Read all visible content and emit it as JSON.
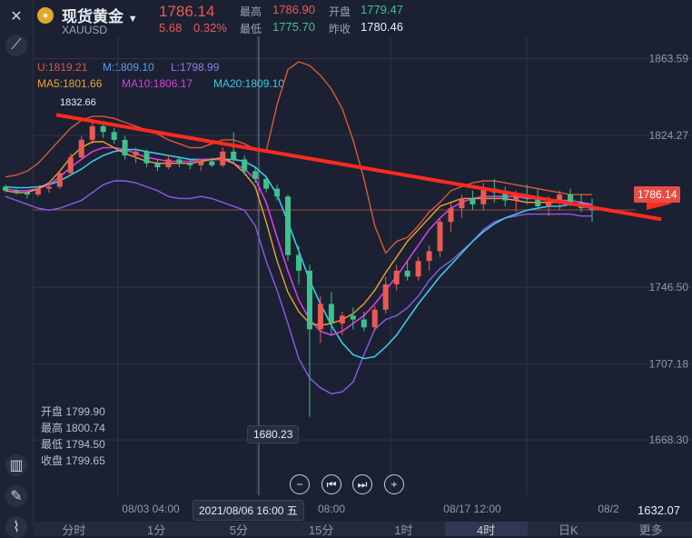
{
  "header": {
    "name": "现货黄金",
    "code": "XAUUSD",
    "price": "1786.14",
    "change": "5.68",
    "change_pct": "0.32%",
    "high_label": "最高",
    "high": "1786.90",
    "open_label": "开盘",
    "open": "1779.47",
    "low_label": "最低",
    "low": "1775.70",
    "prev_label": "昨收",
    "prev": "1780.46"
  },
  "indicators": {
    "boll": {
      "u": "U:1819.21",
      "m": "M:1809.10",
      "l": "L:1798.99"
    },
    "ma": {
      "ma5": "MA5:1801.66",
      "ma10": "MA10:1806.17",
      "ma20": "MA20:1809.10"
    }
  },
  "ohlc_panel": [
    {
      "label": "开盘",
      "value": "1799.90"
    },
    {
      "label": "最高",
      "value": "1800.74"
    },
    {
      "label": "最低",
      "value": "1794.50"
    },
    {
      "label": "收盘",
      "value": "1799.65"
    }
  ],
  "annotations": {
    "max_label": "1832.66",
    "min_label": "1680.23",
    "current_tag": "1786.14",
    "bottom_right": "1632.07",
    "crosshair_time": "2021/08/06 16:00 五"
  },
  "tabs": [
    "分时",
    "1分",
    "5分",
    "15分",
    "1时",
    "4时",
    "日K",
    "更多"
  ],
  "active_tab": "4时",
  "colors": {
    "up": "#e95a55",
    "down": "#3fc08d",
    "ma5": "#f0a030",
    "ma10": "#d83fe0",
    "ma20": "#3cc8e8",
    "boll_u": "#d9583d",
    "boll_l": "#8c5be8",
    "trendline": "#ff2a1f"
  },
  "chart_data": {
    "type": "candlestick",
    "y_ticks": [
      "1863.59",
      "1824.27",
      "1786.14",
      "1746.50",
      "1707.18",
      "1668.30"
    ],
    "x_ticks": [
      "08/03 04:00",
      "08/17 12:00",
      "08/2"
    ],
    "ylim": [
      1640,
      1875
    ],
    "candles": [
      [
        1798,
        1799,
        1795,
        1796
      ],
      [
        1796,
        1797,
        1794,
        1795
      ],
      [
        1795,
        1796,
        1792,
        1794
      ],
      [
        1794,
        1798,
        1793,
        1797
      ],
      [
        1797,
        1800,
        1795,
        1798
      ],
      [
        1798,
        1806,
        1797,
        1805
      ],
      [
        1805,
        1815,
        1804,
        1813
      ],
      [
        1813,
        1824,
        1812,
        1822
      ],
      [
        1822,
        1832.66,
        1820,
        1829
      ],
      [
        1829,
        1831,
        1823,
        1826
      ],
      [
        1826,
        1828,
        1820,
        1822
      ],
      [
        1822,
        1824,
        1812,
        1814
      ],
      [
        1814,
        1818,
        1810,
        1816
      ],
      [
        1816,
        1817,
        1808,
        1810
      ],
      [
        1810,
        1812,
        1806,
        1808
      ],
      [
        1808,
        1814,
        1807,
        1812
      ],
      [
        1812,
        1813,
        1808,
        1810
      ],
      [
        1810,
        1811,
        1807,
        1809
      ],
      [
        1809,
        1812,
        1806,
        1811
      ],
      [
        1811,
        1813,
        1808,
        1809
      ],
      [
        1809,
        1818,
        1808,
        1816
      ],
      [
        1816,
        1826,
        1810,
        1812
      ],
      [
        1812,
        1814,
        1804,
        1806
      ],
      [
        1806,
        1808,
        1800,
        1802
      ],
      [
        1802,
        1803,
        1795,
        1797
      ],
      [
        1797,
        1799,
        1791,
        1793
      ],
      [
        1793,
        1794,
        1760,
        1763
      ],
      [
        1763,
        1768,
        1748,
        1755
      ],
      [
        1755,
        1758,
        1680.23,
        1725
      ],
      [
        1725,
        1742,
        1718,
        1738
      ],
      [
        1738,
        1744,
        1722,
        1728
      ],
      [
        1728,
        1734,
        1722,
        1732
      ],
      [
        1732,
        1736,
        1725,
        1730
      ],
      [
        1730,
        1734,
        1724,
        1726
      ],
      [
        1726,
        1737,
        1724,
        1735
      ],
      [
        1735,
        1752,
        1733,
        1748
      ],
      [
        1748,
        1758,
        1745,
        1755
      ],
      [
        1755,
        1760,
        1750,
        1752
      ],
      [
        1752,
        1762,
        1750,
        1760
      ],
      [
        1760,
        1768,
        1755,
        1765
      ],
      [
        1765,
        1782,
        1762,
        1780
      ],
      [
        1780,
        1790,
        1775,
        1787
      ],
      [
        1787,
        1794,
        1782,
        1792
      ],
      [
        1792,
        1796,
        1786,
        1789
      ],
      [
        1789,
        1800,
        1786,
        1797
      ],
      [
        1797,
        1802,
        1790,
        1795
      ],
      [
        1795,
        1798,
        1788,
        1791
      ],
      [
        1791,
        1796,
        1785,
        1794
      ],
      [
        1794,
        1799,
        1789,
        1792
      ],
      [
        1792,
        1797,
        1787,
        1788
      ],
      [
        1788,
        1793,
        1783,
        1790
      ],
      [
        1790,
        1796,
        1786,
        1794
      ],
      [
        1794,
        1797,
        1788,
        1790
      ],
      [
        1790,
        1794,
        1785,
        1787
      ],
      [
        1787,
        1792,
        1780,
        1786.14
      ]
    ],
    "boll_u": [
      1803,
      1804,
      1806,
      1810,
      1816,
      1822,
      1828,
      1832,
      1834,
      1834,
      1833,
      1831,
      1829,
      1827,
      1825,
      1822,
      1820,
      1818,
      1818,
      1820,
      1822,
      1822,
      1820,
      1817,
      1816,
      1840,
      1858,
      1862,
      1860,
      1855,
      1848,
      1838,
      1822,
      1802,
      1778,
      1764,
      1770,
      1772,
      1778,
      1785,
      1790,
      1796,
      1798,
      1800,
      1801,
      1801,
      1800,
      1799,
      1798,
      1797,
      1796,
      1795,
      1794,
      1794,
      1794
    ],
    "boll_l": [
      1793,
      1791,
      1789,
      1787,
      1786,
      1787,
      1789,
      1791,
      1795,
      1799,
      1801,
      1801,
      1800,
      1798,
      1796,
      1793,
      1792,
      1792,
      1793,
      1792,
      1790,
      1788,
      1786,
      1778,
      1760,
      1745,
      1728,
      1710,
      1700,
      1695,
      1692,
      1693,
      1698,
      1712,
      1725,
      1730,
      1732,
      1736,
      1742,
      1750,
      1756,
      1760,
      1765,
      1770,
      1776,
      1780,
      1782,
      1783,
      1784,
      1784,
      1784,
      1784,
      1784,
      1783,
      1783
    ],
    "ma20": [
      1798,
      1797.5,
      1797.5,
      1798,
      1799,
      1801,
      1804,
      1807,
      1811,
      1814,
      1816,
      1817,
      1817,
      1816,
      1815,
      1814,
      1813,
      1812,
      1812,
      1812,
      1812,
      1812,
      1811,
      1808,
      1803,
      1794,
      1780,
      1765,
      1750,
      1738,
      1727,
      1718,
      1712,
      1710,
      1711,
      1716,
      1722,
      1730,
      1738,
      1745,
      1752,
      1758,
      1764,
      1770,
      1775,
      1779,
      1782,
      1784,
      1786,
      1787,
      1788,
      1788,
      1789,
      1789,
      1789
    ],
    "ma10": [
      1797,
      1796,
      1796,
      1797,
      1799,
      1803,
      1808,
      1812,
      1816,
      1818,
      1818,
      1817,
      1815,
      1813,
      1812,
      1811,
      1811,
      1811,
      1812,
      1812,
      1812,
      1810,
      1807,
      1802,
      1790,
      1772,
      1755,
      1740,
      1730,
      1724,
      1722,
      1724,
      1728,
      1732,
      1738,
      1745,
      1752,
      1760,
      1768,
      1776,
      1782,
      1787,
      1790,
      1792,
      1793,
      1793,
      1793,
      1793,
      1792,
      1792,
      1791,
      1791,
      1791,
      1790,
      1789
    ],
    "ma5": [
      1796,
      1795,
      1795,
      1797,
      1800,
      1806,
      1813,
      1818,
      1821,
      1821,
      1818,
      1815,
      1813,
      1811,
      1810,
      1810,
      1810,
      1810,
      1811,
      1812,
      1813,
      1810,
      1805,
      1798,
      1780,
      1760,
      1744,
      1734,
      1728,
      1727,
      1728,
      1730,
      1733,
      1738,
      1745,
      1754,
      1762,
      1770,
      1776,
      1782,
      1788,
      1790,
      1792,
      1792,
      1792,
      1792,
      1792,
      1791,
      1790,
      1790,
      1790,
      1790,
      1789,
      1788,
      1787
    ],
    "trendline": [
      [
        1832,
        1786
      ]
    ]
  }
}
